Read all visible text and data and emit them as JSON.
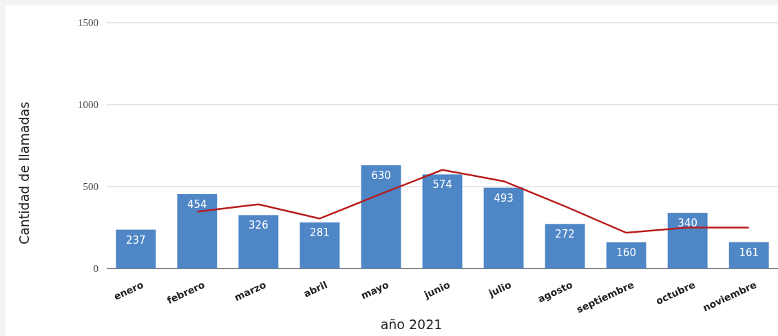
{
  "chart_data": {
    "type": "bar",
    "xlabel": "año 2021",
    "ylabel": "Cantidad de llamadas",
    "categories": [
      "enero",
      "febrero",
      "marzo",
      "abril",
      "mayo",
      "junio",
      "julio",
      "agosto",
      "septiembre",
      "octubre",
      "noviembre"
    ],
    "series": [
      {
        "color": "#4f86c6",
        "values": [
          237,
          454,
          326,
          281,
          630,
          574,
          493,
          272,
          160,
          340,
          161
        ],
        "data_labels": true
      },
      {
        "type": "line",
        "color": "#b71c1c",
        "values": [
          null,
          347,
          392,
          305,
          455,
          602,
          533,
          380,
          218,
          250,
          250
        ]
      }
    ],
    "ylim": [
      0,
      1500
    ],
    "yticks": [
      0,
      500,
      1000,
      1500
    ],
    "grid": "y"
  }
}
